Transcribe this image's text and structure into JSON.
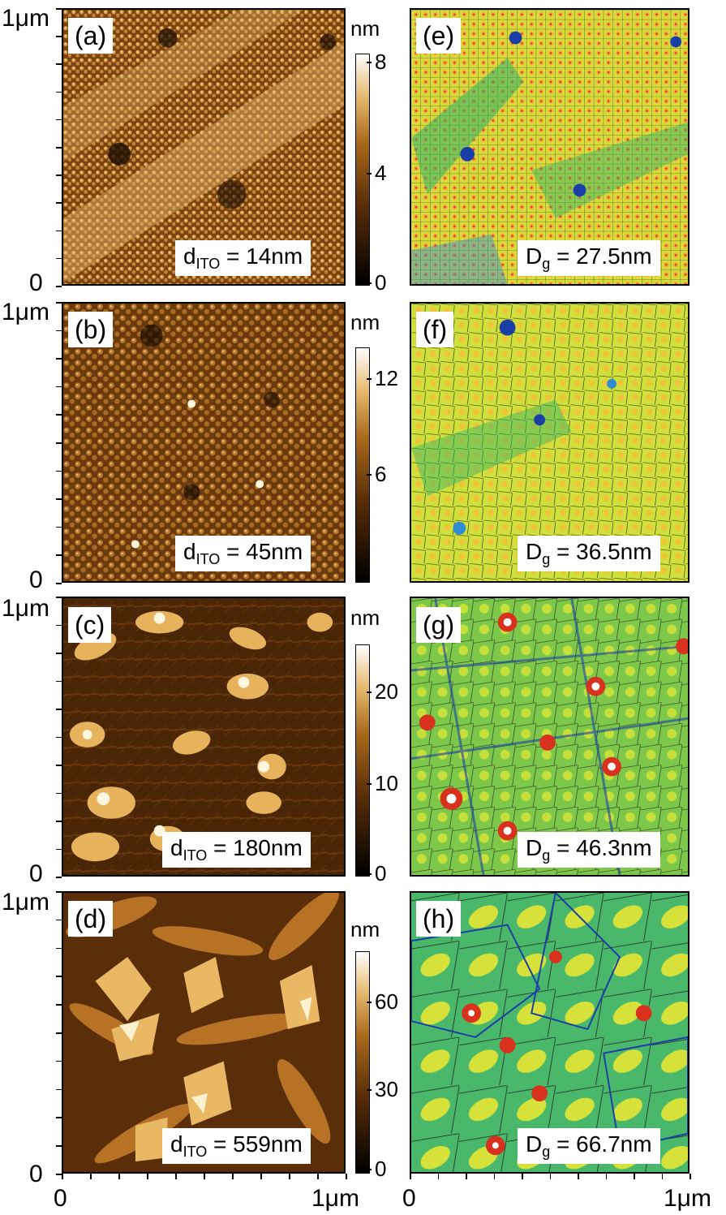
{
  "axes": {
    "y_top": "1μm",
    "y_bottom": "0",
    "x_left": "0",
    "x_right": "1μm"
  },
  "colorbar_unit": "nm",
  "colors": {
    "afm": [
      "#1a0c02",
      "#5a2e08",
      "#a96a1a",
      "#e0b15a",
      "#fff6e0"
    ],
    "grain": [
      "#1b3ea6",
      "#2f8bd4",
      "#2fb36a",
      "#a6d43a",
      "#f2e23a",
      "#f4a23a",
      "#d8321e",
      "#ffffff"
    ]
  },
  "afm_panels": [
    {
      "label": "(a)",
      "thickness": "d",
      "sub": "ITO",
      "value": " = 14nm",
      "ticks": [
        "8",
        "4",
        "0"
      ]
    },
    {
      "label": "(b)",
      "thickness": "d",
      "sub": "ITO",
      "value": " = 45nm",
      "ticks": [
        "12",
        "6"
      ]
    },
    {
      "label": "(c)",
      "thickness": "d",
      "sub": "ITO",
      "value": " = 180nm",
      "ticks": [
        "20",
        "10",
        "0"
      ]
    },
    {
      "label": "(d)",
      "thickness": "d",
      "sub": "ITO",
      "value": " = 559nm",
      "ticks": [
        "60",
        "30",
        "0"
      ]
    }
  ],
  "grain_panels": [
    {
      "label": "(e)",
      "sym": "D",
      "sub": "g",
      "value": " = 27.5nm"
    },
    {
      "label": "(f)",
      "sym": "D",
      "sub": "g",
      "value": " = 36.5nm"
    },
    {
      "label": "(g)",
      "sym": "D",
      "sub": "g",
      "value": " = 46.3nm"
    },
    {
      "label": "(h)",
      "sym": "D",
      "sub": "g",
      "value": " = 66.7nm"
    }
  ]
}
